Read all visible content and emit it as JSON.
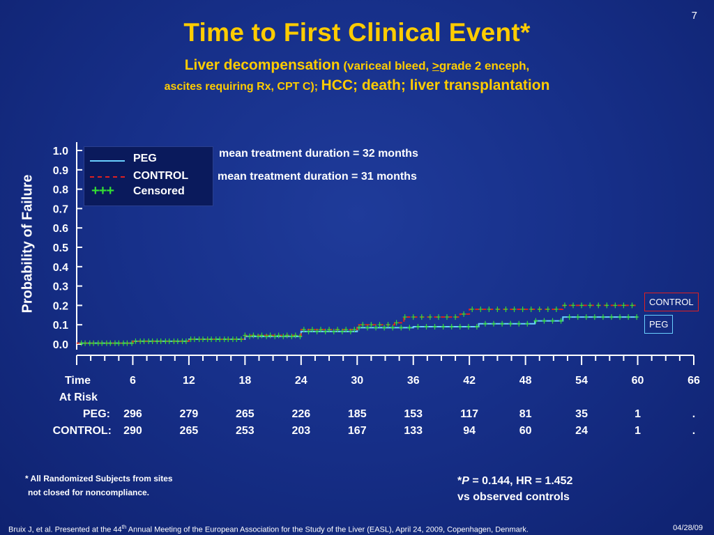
{
  "slide": {
    "number": "7",
    "title": "Time to First Clinical Event*",
    "subtitle_bold": "Liver decompensation",
    "subtitle_paren_a": " (variceal bleed, ",
    "subtitle_ge": ">",
    "subtitle_paren_b": "grade 2 enceph,",
    "subtitle2_a": "ascites requiring Rx, CPT C); ",
    "subtitle2_b": "HCC; death; liver transplantation"
  },
  "legend": {
    "peg": "PEG",
    "control": "CONTROL",
    "censored_symbol": "+++",
    "censored": "Censored"
  },
  "notes": {
    "peg_duration": "mean treatment duration = 32 months",
    "control_duration": "mean treatment duration = 31 months"
  },
  "end_labels": {
    "control": "CONTROL",
    "peg": "PEG"
  },
  "at_risk": {
    "time_label": "Time",
    "at_risk_label": "At Risk",
    "peg_label": "PEG:",
    "control_label": "CONTROL:",
    "times": [
      "6",
      "12",
      "18",
      "24",
      "30",
      "36",
      "42",
      "48",
      "54",
      "60",
      "66"
    ],
    "peg": [
      "296",
      "279",
      "265",
      "226",
      "185",
      "153",
      "117",
      "81",
      "35",
      "1",
      "."
    ],
    "control": [
      "290",
      "265",
      "253",
      "203",
      "167",
      "133",
      "94",
      "60",
      "24",
      "1",
      "."
    ]
  },
  "footnote": {
    "line1": "* All Randomized Subjects from sites",
    "line2": "not closed for noncompliance."
  },
  "stats": {
    "star": "*",
    "p": "P",
    "line1_rest": " = 0.144, HR = 1.452",
    "line2": "vs observed controls"
  },
  "citation": {
    "before": "Bruix J, et al. Presented at the 44",
    "sup": "th",
    "after": " Annual Meeting of the European Association for the Study of the Liver (EASL), April 24, 2009, Copenhagen, Denmark.",
    "date": "04/28/09"
  },
  "colors": {
    "background": "#17308a",
    "title": "#ffcc00",
    "peg_line": "#6ad0ff",
    "control_line": "#e02020",
    "censored": "#33dd33"
  },
  "chart_data": {
    "type": "line",
    "title": "",
    "xlabel": "Time",
    "ylabel": "Probability of Failure",
    "xlim": [
      0,
      66
    ],
    "ylim": [
      0,
      1.0
    ],
    "yticks": [
      "0.0",
      "0.1",
      "0.2",
      "0.3",
      "0.4",
      "0.5",
      "0.6",
      "0.7",
      "0.8",
      "0.9",
      "1.0"
    ],
    "xticks": [
      0,
      6,
      12,
      18,
      24,
      30,
      36,
      42,
      48,
      54,
      60,
      66
    ],
    "legend_position": "top-left",
    "series": [
      {
        "name": "PEG",
        "color": "#6ad0ff",
        "style": "solid",
        "x": [
          0,
          6,
          12,
          18,
          24,
          30,
          36,
          42,
          43,
          48,
          49,
          52,
          54,
          60
        ],
        "y": [
          0.005,
          0.015,
          0.025,
          0.04,
          0.065,
          0.085,
          0.09,
          0.09,
          0.105,
          0.105,
          0.12,
          0.14,
          0.14,
          0.14
        ]
      },
      {
        "name": "CONTROL",
        "color": "#e02020",
        "style": "dashed",
        "x": [
          0,
          6,
          12,
          18,
          24,
          30,
          34,
          35,
          41,
          42,
          47,
          51,
          52,
          60
        ],
        "y": [
          0.005,
          0.015,
          0.025,
          0.045,
          0.075,
          0.1,
          0.11,
          0.14,
          0.155,
          0.18,
          0.18,
          0.18,
          0.2,
          0.2
        ]
      }
    ]
  }
}
